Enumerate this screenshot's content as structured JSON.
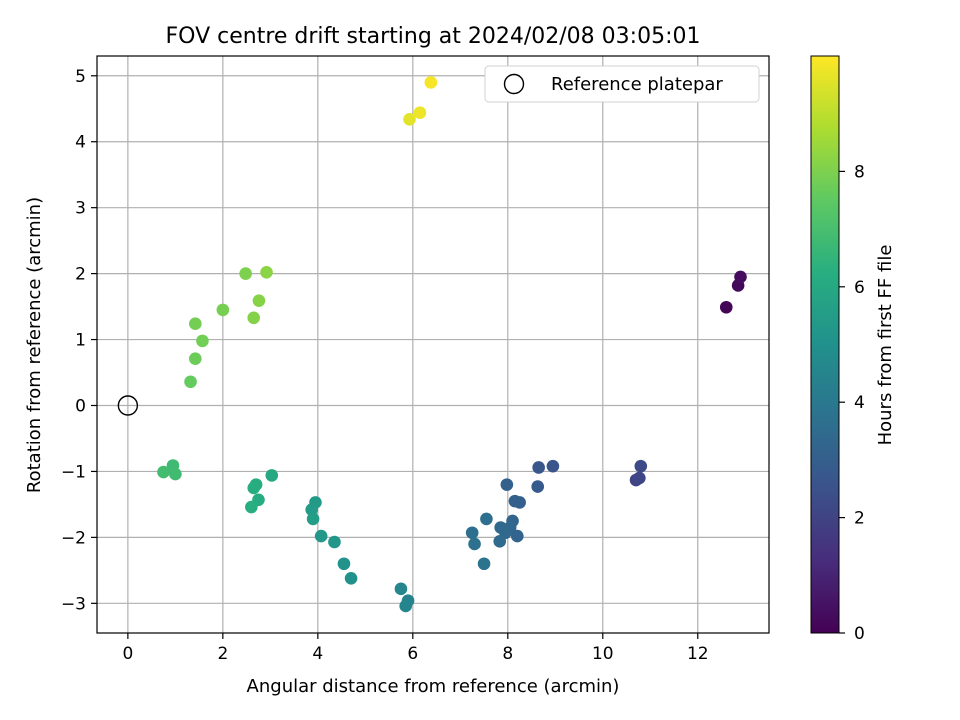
{
  "chart_data": {
    "type": "scatter",
    "title": "FOV centre drift starting at 2024/02/08 03:05:01",
    "xlabel": "Angular distance from reference (arcmin)",
    "ylabel": "Rotation from reference (arcmin)",
    "xlim": [
      -0.65,
      13.5
    ],
    "ylim": [
      -3.45,
      5.3
    ],
    "xticks": [
      0,
      2,
      4,
      6,
      8,
      10,
      12
    ],
    "yticks": [
      -3,
      -2,
      -1,
      0,
      1,
      2,
      3,
      4,
      5
    ],
    "grid": true,
    "legend": {
      "placement": "top-right",
      "entries": [
        "Reference platepar"
      ]
    },
    "reference_point": {
      "x": 0,
      "y": 0
    },
    "colorbar": {
      "label": "Hours from first FF file",
      "range": [
        0,
        10
      ],
      "ticks": [
        0,
        2,
        4,
        6,
        8
      ],
      "colormap": "viridis"
    },
    "points": [
      {
        "x": 12.6,
        "y": 1.49,
        "t": 0.1
      },
      {
        "x": 12.85,
        "y": 1.82,
        "t": 0.2
      },
      {
        "x": 12.9,
        "y": 1.95,
        "t": 0.3
      },
      {
        "x": 10.7,
        "y": -1.13,
        "t": 2.0
      },
      {
        "x": 10.77,
        "y": -1.1,
        "t": 2.1
      },
      {
        "x": 10.8,
        "y": -0.92,
        "t": 2.2
      },
      {
        "x": 8.95,
        "y": -0.92,
        "t": 2.6
      },
      {
        "x": 8.65,
        "y": -0.94,
        "t": 2.7
      },
      {
        "x": 8.63,
        "y": -1.23,
        "t": 2.8
      },
      {
        "x": 8.25,
        "y": -1.47,
        "t": 3.0
      },
      {
        "x": 8.15,
        "y": -1.45,
        "t": 3.05
      },
      {
        "x": 7.98,
        "y": -1.2,
        "t": 3.1
      },
      {
        "x": 8.2,
        "y": -1.98,
        "t": 3.2
      },
      {
        "x": 8.1,
        "y": -1.75,
        "t": 3.25
      },
      {
        "x": 8.05,
        "y": -1.85,
        "t": 3.3
      },
      {
        "x": 7.95,
        "y": -1.93,
        "t": 3.35
      },
      {
        "x": 7.85,
        "y": -1.85,
        "t": 3.4
      },
      {
        "x": 7.83,
        "y": -2.06,
        "t": 3.45
      },
      {
        "x": 7.55,
        "y": -1.72,
        "t": 3.6
      },
      {
        "x": 7.25,
        "y": -1.93,
        "t": 3.65
      },
      {
        "x": 7.3,
        "y": -2.1,
        "t": 3.7
      },
      {
        "x": 7.5,
        "y": -2.4,
        "t": 3.8
      },
      {
        "x": 5.9,
        "y": -2.96,
        "t": 4.4
      },
      {
        "x": 5.85,
        "y": -3.04,
        "t": 4.5
      },
      {
        "x": 5.75,
        "y": -2.78,
        "t": 4.6
      },
      {
        "x": 4.7,
        "y": -2.62,
        "t": 5.0
      },
      {
        "x": 4.55,
        "y": -2.4,
        "t": 5.1
      },
      {
        "x": 4.35,
        "y": -2.07,
        "t": 5.2
      },
      {
        "x": 4.07,
        "y": -1.98,
        "t": 5.3
      },
      {
        "x": 3.95,
        "y": -1.47,
        "t": 5.4
      },
      {
        "x": 3.87,
        "y": -1.58,
        "t": 5.45
      },
      {
        "x": 3.9,
        "y": -1.72,
        "t": 5.5
      },
      {
        "x": 3.03,
        "y": -1.06,
        "t": 6.0
      },
      {
        "x": 2.7,
        "y": -1.2,
        "t": 6.1
      },
      {
        "x": 2.75,
        "y": -1.43,
        "t": 6.15
      },
      {
        "x": 2.65,
        "y": -1.25,
        "t": 6.2
      },
      {
        "x": 2.6,
        "y": -1.54,
        "t": 6.25
      },
      {
        "x": 0.95,
        "y": -0.91,
        "t": 6.8
      },
      {
        "x": 1.0,
        "y": -1.04,
        "t": 6.85
      },
      {
        "x": 0.75,
        "y": -1.01,
        "t": 6.9
      },
      {
        "x": 1.32,
        "y": 0.36,
        "t": 7.6
      },
      {
        "x": 1.42,
        "y": 0.71,
        "t": 7.7
      },
      {
        "x": 1.57,
        "y": 0.98,
        "t": 7.8
      },
      {
        "x": 1.42,
        "y": 1.24,
        "t": 7.85
      },
      {
        "x": 2.0,
        "y": 1.45,
        "t": 7.9
      },
      {
        "x": 2.48,
        "y": 2.0,
        "t": 8.0
      },
      {
        "x": 2.65,
        "y": 1.33,
        "t": 8.1
      },
      {
        "x": 2.76,
        "y": 1.59,
        "t": 8.15
      },
      {
        "x": 2.92,
        "y": 2.02,
        "t": 8.2
      },
      {
        "x": 5.93,
        "y": 4.34,
        "t": 9.6
      },
      {
        "x": 6.15,
        "y": 4.44,
        "t": 9.75
      },
      {
        "x": 6.38,
        "y": 4.9,
        "t": 9.9
      }
    ]
  }
}
